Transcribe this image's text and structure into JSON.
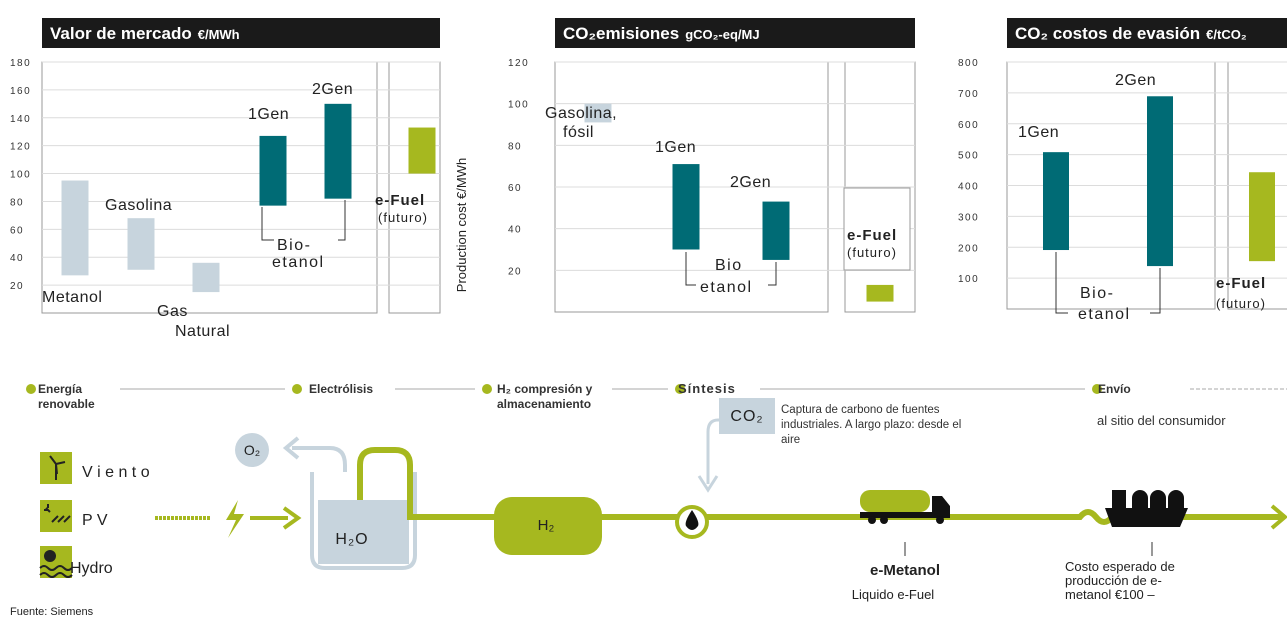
{
  "chart_data": [
    {
      "type": "floating_bar",
      "title": "Valor de mercado",
      "unit": "€/MWh",
      "ylabel": "Production cost €/MWh",
      "categories": [
        [
          "Metanol"
        ],
        [
          "Gasolina"
        ],
        [
          "Gas",
          "Natural"
        ],
        [
          "1Gen"
        ],
        [
          "2Gen"
        ],
        [
          "e-Fuel"
        ]
      ],
      "low": [
        27,
        31,
        15,
        77,
        82,
        100
      ],
      "high": [
        95,
        68,
        36,
        127,
        150,
        133
      ],
      "colors": [
        "#c7d4dd",
        "#c7d4dd",
        "#c7d4dd",
        "#006b75",
        "#006b75",
        "#a6b81f"
      ],
      "group_label": [
        "Bio-",
        "etanol"
      ],
      "note": "(futuro)",
      "ylim": [
        0,
        180
      ],
      "yticks": [
        20,
        40,
        60,
        80,
        100,
        120,
        140,
        160,
        180
      ]
    },
    {
      "type": "floating_bar",
      "title": "CO₂emisiones",
      "unit": "gCO₂-eq/MJ",
      "categories": [
        [
          "Gasolina,",
          "fósil"
        ],
        [
          "1Gen"
        ],
        [
          "2Gen"
        ],
        [
          "e-Fuel"
        ]
      ],
      "low": [
        91,
        30,
        25,
        5
      ],
      "high": [
        100,
        71,
        53,
        13
      ],
      "colors": [
        "#c7d4dd",
        "#006b75",
        "#006b75",
        "#a6b81f"
      ],
      "group_label": [
        "Bio",
        "etanol"
      ],
      "note": "(futuro)",
      "ylim": [
        0,
        120
      ],
      "yticks": [
        20,
        40,
        60,
        80,
        100,
        120
      ]
    },
    {
      "type": "floating_bar",
      "title": "CO₂ costos de evasión",
      "unit": "€/tCO₂",
      "categories": [
        [
          "1Gen"
        ],
        [
          "2Gen"
        ],
        [
          "e-Fuel"
        ]
      ],
      "low": [
        191,
        139,
        155
      ],
      "high": [
        508,
        689,
        443
      ],
      "colors": [
        "#006b75",
        "#006b75",
        "#a6b81f"
      ],
      "group_label": [
        "Bio-",
        "etanol"
      ],
      "note": "(futuro)",
      "ylim": [
        0,
        800
      ],
      "yticks": [
        100,
        200,
        300,
        400,
        500,
        600,
        700,
        800
      ]
    }
  ],
  "diagram": {
    "steps": [
      [
        "Energía",
        "renovable"
      ],
      [
        "Electrólisis"
      ],
      [
        "H₂ compresión y",
        "almacenamiento"
      ],
      [
        "Síntesis"
      ],
      [
        "Envío"
      ]
    ],
    "shipping_note": "al sitio del consumidor",
    "sources": [
      "V i e n t o",
      "P V",
      "Hydro"
    ],
    "o2": "O₂",
    "water": "H₂O",
    "h2": "H₂",
    "co2": "CO₂",
    "capture": [
      "Captura de carbono de fuentes",
      "industriales. A largo plazo: desde el",
      "aire"
    ],
    "product": "e-Metanol",
    "product_note": "Liquido e-Fuel",
    "cost": [
      "Costo esperado de",
      "producción de e-",
      "metanol €100 –"
    ],
    "source": "Fuente: Siemens"
  }
}
